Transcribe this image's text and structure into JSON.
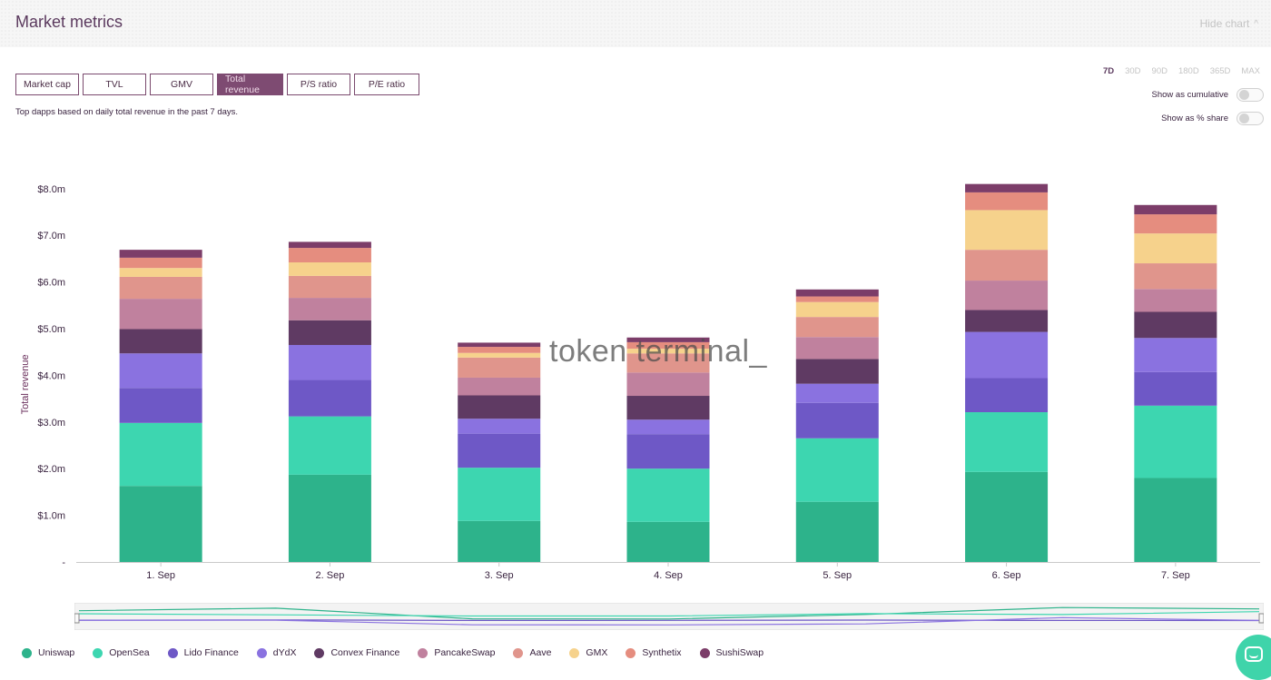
{
  "header": {
    "title": "Market metrics",
    "hide_chart_label": "Hide chart"
  },
  "metric_tabs": [
    {
      "label": "Market cap",
      "active": false
    },
    {
      "label": "TVL",
      "active": false
    },
    {
      "label": "GMV",
      "active": false
    },
    {
      "label": "Total revenue",
      "active": true
    },
    {
      "label": "P/S ratio",
      "active": false
    },
    {
      "label": "P/E ratio",
      "active": false
    }
  ],
  "subtitle": "Top dapps based on daily total revenue in the past 7 days.",
  "ranges": [
    {
      "label": "7D",
      "active": true
    },
    {
      "label": "30D",
      "active": false
    },
    {
      "label": "90D",
      "active": false
    },
    {
      "label": "180D",
      "active": false
    },
    {
      "label": "365D",
      "active": false
    },
    {
      "label": "MAX",
      "active": false
    }
  ],
  "toggles": {
    "cumulative": {
      "label": "Show as cumulative",
      "on": false
    },
    "share": {
      "label": "Show as % share",
      "on": false
    }
  },
  "watermark": "token terminal_",
  "chart_data": {
    "type": "bar",
    "stacked": true,
    "ylabel": "Total revenue",
    "ylim": [
      0,
      8
    ],
    "yticks": [
      "-",
      "$1.0m",
      "$2.0m",
      "$3.0m",
      "$4.0m",
      "$5.0m",
      "$6.0m",
      "$7.0m",
      "$8.0m"
    ],
    "categories": [
      "1. Sep",
      "2. Sep",
      "3. Sep",
      "4. Sep",
      "5. Sep",
      "6. Sep",
      "7. Sep"
    ],
    "series": [
      {
        "name": "Uniswap",
        "color": "#2db38b",
        "values": [
          1.63,
          1.87,
          0.88,
          0.86,
          1.29,
          1.93,
          1.8
        ]
      },
      {
        "name": "OpenSea",
        "color": "#3dd6b0",
        "values": [
          1.35,
          1.25,
          1.14,
          1.14,
          1.36,
          1.28,
          1.55
        ]
      },
      {
        "name": "Lido Finance",
        "color": "#6e58c6",
        "values": [
          0.75,
          0.78,
          0.73,
          0.74,
          0.76,
          0.73,
          0.72
        ]
      },
      {
        "name": "dYdX",
        "color": "#8a72e0",
        "values": [
          0.74,
          0.75,
          0.32,
          0.31,
          0.41,
          0.99,
          0.73
        ]
      },
      {
        "name": "Convex Finance",
        "color": "#5f3a63",
        "values": [
          0.52,
          0.53,
          0.5,
          0.51,
          0.53,
          0.47,
          0.56
        ]
      },
      {
        "name": "PancakeSwap",
        "color": "#c0819e",
        "values": [
          0.65,
          0.48,
          0.38,
          0.5,
          0.47,
          0.63,
          0.49
        ]
      },
      {
        "name": "Aave",
        "color": "#e0958c",
        "values": [
          0.47,
          0.47,
          0.43,
          0.41,
          0.43,
          0.66,
          0.55
        ]
      },
      {
        "name": "GMX",
        "color": "#f6d28c",
        "values": [
          0.19,
          0.29,
          0.1,
          0.1,
          0.32,
          0.85,
          0.64
        ]
      },
      {
        "name": "Synthetix",
        "color": "#e58d7f",
        "values": [
          0.22,
          0.31,
          0.13,
          0.14,
          0.12,
          0.38,
          0.41
        ]
      },
      {
        "name": "SushiSwap",
        "color": "#7c3d69",
        "values": [
          0.17,
          0.13,
          0.09,
          0.1,
          0.15,
          0.18,
          0.2
        ]
      }
    ],
    "legend_position": "bottom"
  }
}
